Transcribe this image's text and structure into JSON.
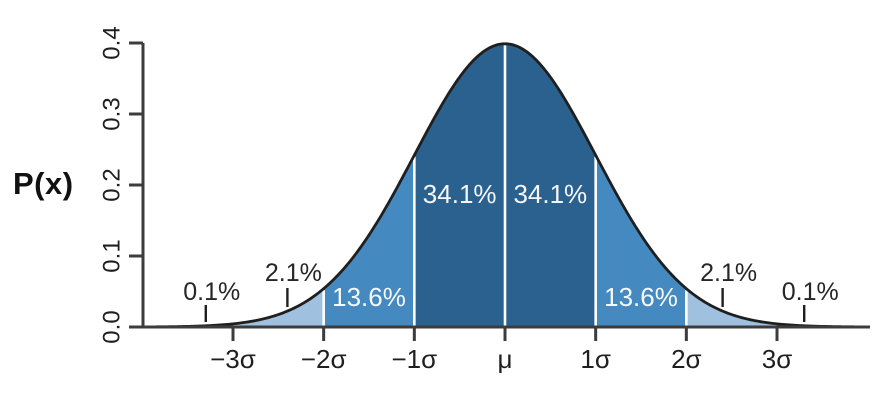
{
  "chart_data": {
    "type": "area",
    "description": "standard normal probability density curve with shaded standard-deviation bands",
    "ylabel": "P(x)",
    "ylim": [
      0,
      0.4
    ],
    "x_range_sigma": [
      -4,
      4
    ],
    "grid": "off",
    "peak_density": 0.4,
    "y_ticks": [
      {
        "value": 0.0,
        "label": "0.0"
      },
      {
        "value": 0.1,
        "label": "0.1"
      },
      {
        "value": 0.2,
        "label": "0.2"
      },
      {
        "value": 0.3,
        "label": "0.3"
      },
      {
        "value": 0.4,
        "label": "0.4"
      }
    ],
    "x_ticks": [
      {
        "sigma": -3,
        "label": "−3σ"
      },
      {
        "sigma": -2,
        "label": "−2σ"
      },
      {
        "sigma": -1,
        "label": "−1σ"
      },
      {
        "sigma": 0,
        "label": "μ"
      },
      {
        "sigma": 1,
        "label": "1σ"
      },
      {
        "sigma": 2,
        "label": "2σ"
      },
      {
        "sigma": 3,
        "label": "3σ"
      }
    ],
    "regions": [
      {
        "from": -4,
        "to": -3,
        "percent": "0.1%",
        "share": 0.001,
        "color": "#59595B",
        "label_inside": false
      },
      {
        "from": -3,
        "to": -2,
        "percent": "2.1%",
        "share": 0.021,
        "color": "#9FC0DF",
        "label_inside": false
      },
      {
        "from": -2,
        "to": -1,
        "percent": "13.6%",
        "share": 0.136,
        "color": "#4589C1",
        "label_inside": true
      },
      {
        "from": -1,
        "to": 0,
        "percent": "34.1%",
        "share": 0.341,
        "color": "#2B618E",
        "label_inside": true
      },
      {
        "from": 0,
        "to": 1,
        "percent": "34.1%",
        "share": 0.341,
        "color": "#2B618E",
        "label_inside": true
      },
      {
        "from": 1,
        "to": 2,
        "percent": "13.6%",
        "share": 0.136,
        "color": "#4589C1",
        "label_inside": true
      },
      {
        "from": 2,
        "to": 3,
        "percent": "2.1%",
        "share": 0.021,
        "color": "#9FC0DF",
        "label_inside": false
      },
      {
        "from": 3,
        "to": 4,
        "percent": "0.1%",
        "share": 0.001,
        "color": "#59595B",
        "label_inside": false
      }
    ],
    "outside_labels": [
      {
        "text": "0.1%",
        "pointer_sigma": -3.3
      },
      {
        "text": "2.1%",
        "pointer_sigma": -2.4
      },
      {
        "text": "2.1%",
        "pointer_sigma": 2.4
      },
      {
        "text": "0.1%",
        "pointer_sigma": 3.3
      }
    ],
    "separators_sigma": [
      -2,
      -1,
      0,
      1,
      2
    ],
    "colors": {
      "curve_stroke": "#1F1F1F",
      "axis": "#3C3C3C",
      "tick_label_text": "#1F1F1F",
      "inside_label_text": "#FFFFFF",
      "outside_label_text": "#262626",
      "separator": "#FFFFFF",
      "background": "#FFFFFF"
    }
  }
}
